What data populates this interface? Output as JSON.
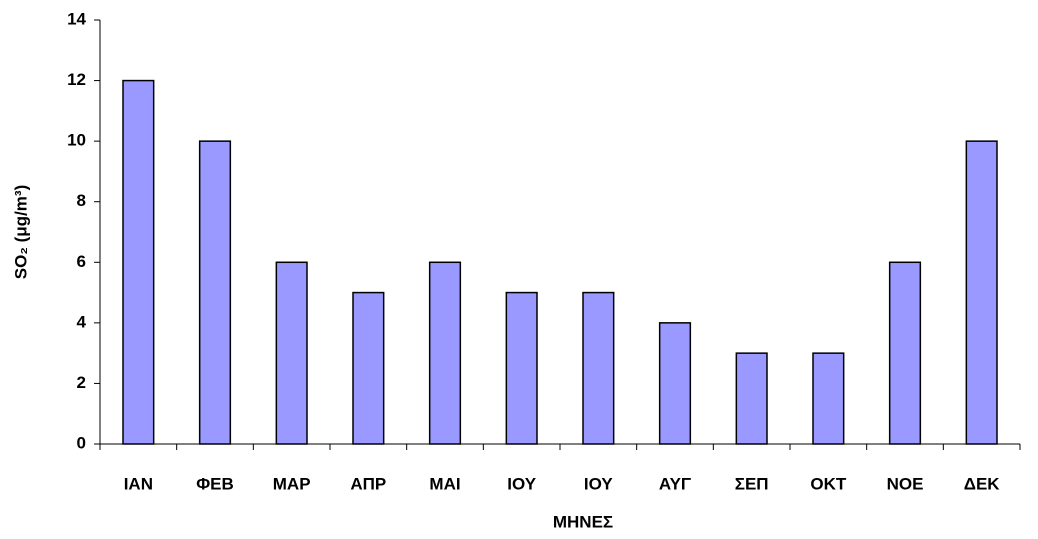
{
  "chart_data": {
    "type": "bar",
    "x_label": "ΜΗΝΕΣ",
    "y_label": "SO₂ (μg/m³)",
    "categories": [
      "ΙΑΝ",
      "ΦΕΒ",
      "ΜΑΡ",
      "ΑΠΡ",
      "ΜΑΙ",
      "ΙΟΥ",
      "ΙΟΥ",
      "ΑΥΓ",
      "ΣΕΠ",
      "ΟΚΤ",
      "ΝΟΕ",
      "ΔΕΚ"
    ],
    "values": [
      12,
      10,
      6,
      5,
      6,
      5,
      5,
      4,
      3,
      3,
      6,
      10
    ],
    "color": "#9999ff",
    "ylim": [
      0,
      14
    ],
    "yticks": [
      0,
      2,
      4,
      6,
      8,
      10,
      12,
      14
    ],
    "grid": false
  }
}
